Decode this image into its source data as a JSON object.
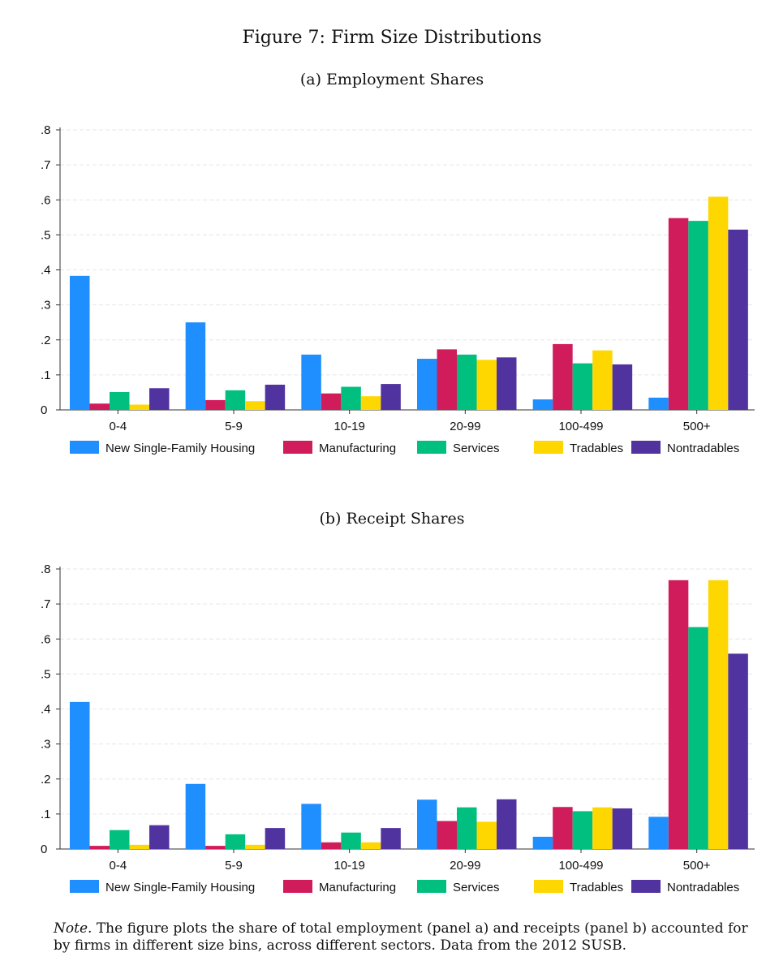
{
  "figure_title": "Figure 7: Firm Size Distributions",
  "note": {
    "label": "Note.",
    "text": "The figure plots the share of total employment (panel a) and receipts (panel b) accounted for by firms in different size bins, across different sectors. Data from the 2012 SUSB."
  },
  "colors": {
    "New Single-Family Housing": "#1F8FFF",
    "Manufacturing": "#D11C5B",
    "Services": "#00BF7F",
    "Tradables": "#FFD700",
    "Nontradables": "#5133A0"
  },
  "chart_data": [
    {
      "type": "bar",
      "title": "(a) Employment Shares",
      "categories": [
        "0-4",
        "5-9",
        "10-19",
        "20-99",
        "100-499",
        "500+"
      ],
      "ylim": [
        0,
        0.8
      ],
      "yticks": [
        0,
        0.1,
        0.2,
        0.3,
        0.4,
        0.5,
        0.6,
        0.7,
        0.8
      ],
      "ytick_labels": [
        "0",
        ".1",
        ".2",
        ".3",
        ".4",
        ".5",
        ".6",
        ".7",
        ".8"
      ],
      "grid": true,
      "legend": "bottom",
      "series": [
        {
          "name": "New Single-Family Housing",
          "values": [
            0.383,
            0.25,
            0.158,
            0.146,
            0.03,
            0.035
          ]
        },
        {
          "name": "Manufacturing",
          "values": [
            0.018,
            0.028,
            0.047,
            0.173,
            0.188,
            0.548
          ]
        },
        {
          "name": "Services",
          "values": [
            0.051,
            0.056,
            0.066,
            0.158,
            0.133,
            0.54
          ]
        },
        {
          "name": "Tradables",
          "values": [
            0.015,
            0.025,
            0.039,
            0.143,
            0.17,
            0.609
          ]
        },
        {
          "name": "Nontradables",
          "values": [
            0.062,
            0.072,
            0.074,
            0.15,
            0.13,
            0.515
          ]
        }
      ]
    },
    {
      "type": "bar",
      "title": "(b) Receipt Shares",
      "categories": [
        "0-4",
        "5-9",
        "10-19",
        "20-99",
        "100-499",
        "500+"
      ],
      "ylim": [
        0,
        0.8
      ],
      "yticks": [
        0,
        0.1,
        0.2,
        0.3,
        0.4,
        0.5,
        0.6,
        0.7,
        0.8
      ],
      "ytick_labels": [
        "0",
        ".1",
        ".2",
        ".3",
        ".4",
        ".5",
        ".6",
        ".7",
        ".8"
      ],
      "grid": true,
      "legend": "bottom",
      "series": [
        {
          "name": "New Single-Family Housing",
          "values": [
            0.42,
            0.186,
            0.129,
            0.141,
            0.035,
            0.092
          ]
        },
        {
          "name": "Manufacturing",
          "values": [
            0.009,
            0.009,
            0.019,
            0.08,
            0.12,
            0.768
          ]
        },
        {
          "name": "Services",
          "values": [
            0.054,
            0.042,
            0.047,
            0.119,
            0.108,
            0.634
          ]
        },
        {
          "name": "Tradables",
          "values": [
            0.012,
            0.012,
            0.019,
            0.078,
            0.119,
            0.768
          ]
        },
        {
          "name": "Nontradables",
          "values": [
            0.068,
            0.06,
            0.06,
            0.142,
            0.116,
            0.558
          ]
        }
      ]
    }
  ]
}
